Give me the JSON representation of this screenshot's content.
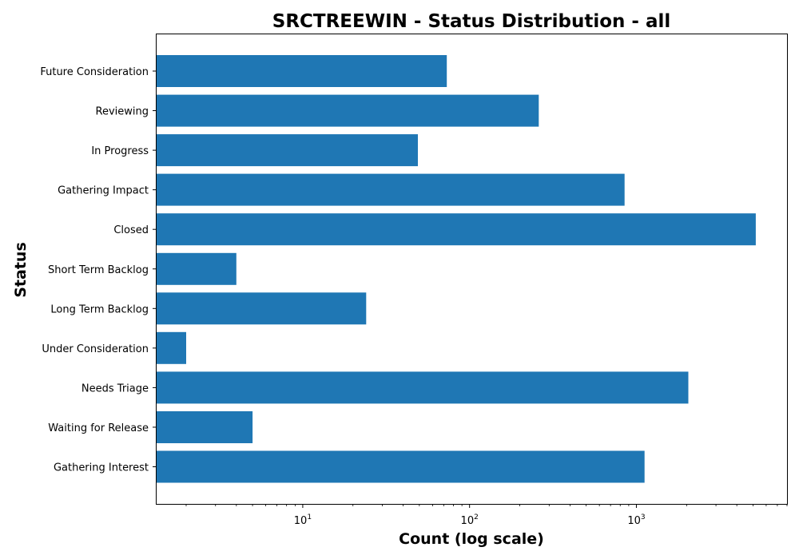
{
  "chart_data": {
    "type": "bar",
    "orientation": "horizontal",
    "title": "SRCTREEWIN - Status Distribution - all",
    "xlabel": "Count (log scale)",
    "ylabel": "Status",
    "x_scale": "log",
    "xlim": [
      1.33,
      8000
    ],
    "x_ticks": [
      {
        "value": 10,
        "base": "10",
        "exp": "1"
      },
      {
        "value": 100,
        "base": "10",
        "exp": "2"
      },
      {
        "value": 1000,
        "base": "10",
        "exp": "3"
      }
    ],
    "categories": [
      "Future Consideration",
      "Reviewing",
      "In Progress",
      "Gathering Impact",
      "Closed",
      "Short Term Backlog",
      "Long Term Backlog",
      "Under Consideration",
      "Needs Triage",
      "Waiting for Release",
      "Gathering Interest"
    ],
    "values": [
      73,
      260,
      49,
      850,
      5200,
      4,
      24,
      2,
      2050,
      5,
      1120
    ],
    "grid": false,
    "bar_color": "#1f77b4"
  }
}
